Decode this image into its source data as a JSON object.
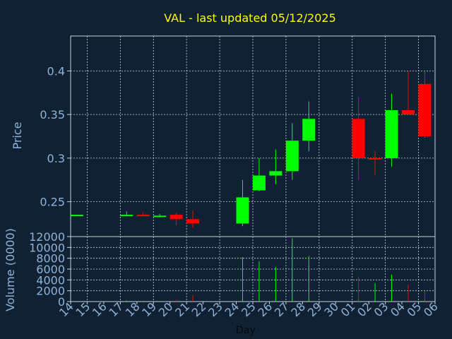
{
  "chart_data": [
    {
      "type": "candlestick",
      "title": "VAL - last updated 05/12/2025",
      "ylabel": "Price",
      "ylim": [
        0.21,
        0.44
      ],
      "yticks": [
        0.25,
        0.3,
        0.35,
        0.4
      ],
      "ytick_labels": [
        "0.25",
        "0.3",
        "0.35",
        "0.4"
      ],
      "grid": true,
      "colors": {
        "up": "#00ff00",
        "down": "#ff0000",
        "text_title": "#ffff00",
        "axis_text": "#8fb3d9",
        "grid": "#c8d2dc",
        "background": "#0f2133"
      },
      "candles": [
        {
          "x": "14",
          "open": 0.235,
          "high": 0.235,
          "low": 0.235,
          "close": 0.235
        },
        {
          "x": "17",
          "open": 0.234,
          "high": 0.239,
          "low": 0.233,
          "close": 0.235
        },
        {
          "x": "18",
          "open": 0.235,
          "high": 0.238,
          "low": 0.233,
          "close": 0.234
        },
        {
          "x": "19",
          "open": 0.234,
          "high": 0.236,
          "low": 0.232,
          "close": 0.234
        },
        {
          "x": "20",
          "open": 0.235,
          "high": 0.237,
          "low": 0.223,
          "close": 0.23
        },
        {
          "x": "21",
          "open": 0.23,
          "high": 0.24,
          "low": 0.22,
          "close": 0.225
        },
        {
          "x": "24",
          "open": 0.225,
          "high": 0.275,
          "low": 0.222,
          "close": 0.255
        },
        {
          "x": "25",
          "open": 0.263,
          "high": 0.3,
          "low": 0.262,
          "close": 0.28
        },
        {
          "x": "26",
          "open": 0.28,
          "high": 0.31,
          "low": 0.27,
          "close": 0.285
        },
        {
          "x": "27",
          "open": 0.285,
          "high": 0.34,
          "low": 0.275,
          "close": 0.32
        },
        {
          "x": "28",
          "open": 0.32,
          "high": 0.365,
          "low": 0.308,
          "close": 0.345
        },
        {
          "x": "01",
          "open": 0.345,
          "high": 0.37,
          "low": 0.275,
          "close": 0.3
        },
        {
          "x": "02",
          "open": 0.3,
          "high": 0.308,
          "low": 0.28,
          "close": 0.299
        },
        {
          "x": "03",
          "open": 0.3,
          "high": 0.374,
          "low": 0.29,
          "close": 0.355
        },
        {
          "x": "04",
          "open": 0.355,
          "high": 0.4,
          "low": 0.35,
          "close": 0.35
        },
        {
          "x": "05",
          "open": 0.385,
          "high": 0.4,
          "low": 0.323,
          "close": 0.325
        }
      ]
    },
    {
      "type": "bar",
      "xlabel": "Day",
      "ylabel": "Volume (0000)",
      "ylim": [
        0,
        12000
      ],
      "yticks": [
        0,
        2000,
        4000,
        6000,
        8000,
        10000,
        12000
      ],
      "ytick_labels": [
        "0",
        "2000",
        "4000",
        "6000",
        "8000",
        "10000",
        "12000"
      ],
      "categories": [
        "14",
        "15",
        "16",
        "17",
        "18",
        "19",
        "20",
        "21",
        "22",
        "23",
        "24",
        "25",
        "26",
        "27",
        "28",
        "29",
        "30",
        "01",
        "02",
        "03",
        "04",
        "05",
        "06"
      ],
      "values": [
        0,
        0,
        0,
        200,
        150,
        100,
        300,
        1200,
        0,
        0,
        8200,
        7400,
        6400,
        11700,
        8400,
        0,
        0,
        4500,
        3400,
        5000,
        3200,
        1900,
        0
      ],
      "bar_colors": [
        "#00ff00",
        "#00ff00",
        "#00ff00",
        "#00ff00",
        "#00ff00",
        "#00ff00",
        "#ff0000",
        "#ff0000",
        "#00ff00",
        "#00ff00",
        "#00ff00",
        "#00ff00",
        "#00ff00",
        "#00ff00",
        "#00ff00",
        "#00ff00",
        "#00ff00",
        "#ff0000",
        "#00ff00",
        "#00ff00",
        "#ff0000",
        "#ff0000",
        "#00ff00"
      ]
    }
  ]
}
